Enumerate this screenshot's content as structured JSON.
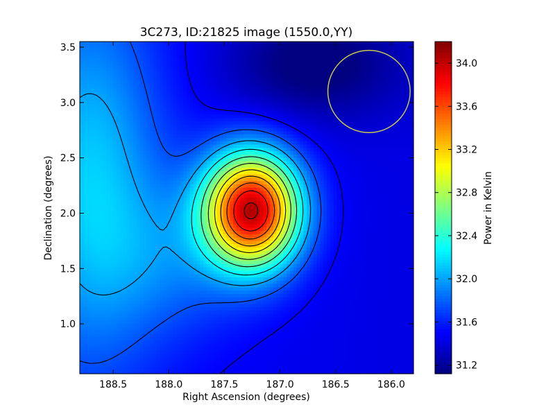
{
  "chart_data": {
    "type": "heatmap",
    "title": "3C273, ID:21825 image (1550.0,YY)",
    "xlabel": "Right Ascension (degrees)",
    "ylabel": "Declination (degrees)",
    "xlim": [
      188.8,
      185.8
    ],
    "ylim": [
      0.55,
      3.55
    ],
    "x_ticks": [
      188.5,
      188.0,
      187.5,
      187.0,
      186.5,
      186.0
    ],
    "x_tick_labels": [
      "188.5",
      "188.0",
      "187.5",
      "187.0",
      "186.5",
      "186.0"
    ],
    "y_ticks": [
      1.0,
      1.5,
      2.0,
      2.5,
      3.0,
      3.5
    ],
    "y_tick_labels": [
      "1.0",
      "1.5",
      "2.0",
      "2.5",
      "3.0",
      "3.5"
    ],
    "colormap": "jet",
    "colorbar": {
      "label": "Power in Kelvin",
      "range": [
        31.12,
        34.2
      ],
      "ticks": [
        31.2,
        31.6,
        32.0,
        32.4,
        32.8,
        33.2,
        33.6,
        34.0
      ],
      "tick_labels": [
        "31.2",
        "31.6",
        "32.0",
        "32.4",
        "32.8",
        "33.2",
        "33.6",
        "34.0"
      ]
    },
    "peak": {
      "ra": 187.25,
      "dec": 2.03,
      "value": 34.18
    },
    "contour_levels": [
      31.5,
      31.75,
      32.0,
      32.25,
      32.5,
      32.75,
      33.0,
      33.25,
      33.5,
      33.75,
      34.0
    ],
    "beam_circle": {
      "ra": 186.2,
      "dec": 3.1,
      "radius_deg": 0.37,
      "color": "#c8c84a"
    }
  }
}
